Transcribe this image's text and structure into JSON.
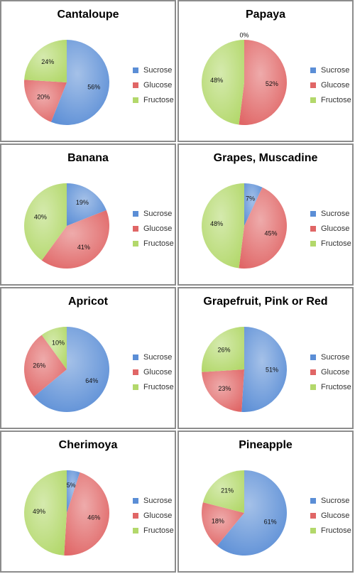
{
  "legend_labels": [
    "Sucrose",
    "Glucose",
    "Fructose"
  ],
  "colors": {
    "Sucrose": "#5b8ed6",
    "Glucose": "#e06666",
    "Fructose": "#b3d86b"
  },
  "chart_data": [
    {
      "type": "pie",
      "title": "Cantaloupe",
      "categories": [
        "Sucrose",
        "Glucose",
        "Fructose"
      ],
      "values": [
        56,
        20,
        24
      ],
      "labels": [
        "56%",
        "20%",
        "24%"
      ],
      "legend": "right"
    },
    {
      "type": "pie",
      "title": "Papaya",
      "categories": [
        "Sucrose",
        "Glucose",
        "Fructose"
      ],
      "values": [
        0,
        52,
        48
      ],
      "labels": [
        "0%",
        "52%",
        "48%"
      ],
      "legend": "right"
    },
    {
      "type": "pie",
      "title": "Banana",
      "categories": [
        "Sucrose",
        "Glucose",
        "Fructose"
      ],
      "values": [
        19,
        41,
        40
      ],
      "labels": [
        "19%",
        "41%",
        "40%"
      ],
      "legend": "right"
    },
    {
      "type": "pie",
      "title": "Grapes, Muscadine",
      "categories": [
        "Sucrose",
        "Glucose",
        "Fructose"
      ],
      "values": [
        7,
        45,
        48
      ],
      "labels": [
        "7%",
        "45%",
        "48%"
      ],
      "legend": "right"
    },
    {
      "type": "pie",
      "title": "Apricot",
      "categories": [
        "Sucrose",
        "Glucose",
        "Fructose"
      ],
      "values": [
        64,
        26,
        10
      ],
      "labels": [
        "64%",
        "26%",
        "10%"
      ],
      "legend": "right"
    },
    {
      "type": "pie",
      "title": "Grapefruit, Pink or Red",
      "categories": [
        "Sucrose",
        "Glucose",
        "Fructose"
      ],
      "values": [
        51,
        23,
        26
      ],
      "labels": [
        "51%",
        "23%",
        "26%"
      ],
      "legend": "right"
    },
    {
      "type": "pie",
      "title": "Cherimoya",
      "categories": [
        "Sucrose",
        "Glucose",
        "Fructose"
      ],
      "values": [
        5,
        46,
        49
      ],
      "labels": [
        "5%",
        "46%",
        "49%"
      ],
      "legend": "right"
    },
    {
      "type": "pie",
      "title": "Pineapple",
      "categories": [
        "Sucrose",
        "Glucose",
        "Fructose"
      ],
      "values": [
        61,
        18,
        21
      ],
      "labels": [
        "61%",
        "18%",
        "21%"
      ],
      "legend": "right"
    }
  ]
}
